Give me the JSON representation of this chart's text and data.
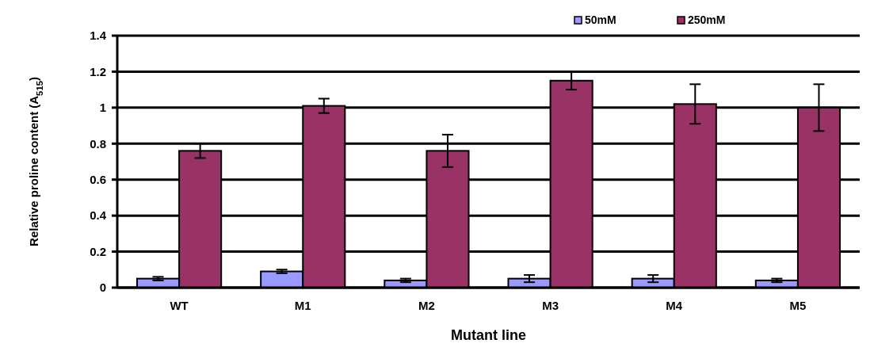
{
  "chart_data": {
    "type": "bar",
    "xlabel": "Mutant line",
    "ylabel": "Relative proline content (A$_{515}$)",
    "categories": [
      "WT",
      "M1",
      "M2",
      "M3",
      "M4",
      "M5"
    ],
    "series": [
      {
        "name": "50mM",
        "color": "#9999ff",
        "values": [
          0.05,
          0.09,
          0.04,
          0.05,
          0.05,
          0.04
        ],
        "errors": [
          0.01,
          0.01,
          0.01,
          0.02,
          0.02,
          0.01
        ]
      },
      {
        "name": "250mM",
        "color": "#993366",
        "values": [
          0.76,
          1.01,
          0.76,
          1.15,
          1.02,
          1.0
        ],
        "errors": [
          0.04,
          0.04,
          0.09,
          0.05,
          0.11,
          0.13
        ]
      }
    ],
    "ylim": [
      0,
      1.4
    ],
    "yticks": [
      0,
      0.2,
      0.4,
      0.6,
      0.8,
      1,
      1.2,
      1.4
    ],
    "grid": "y",
    "legend": "top right"
  }
}
